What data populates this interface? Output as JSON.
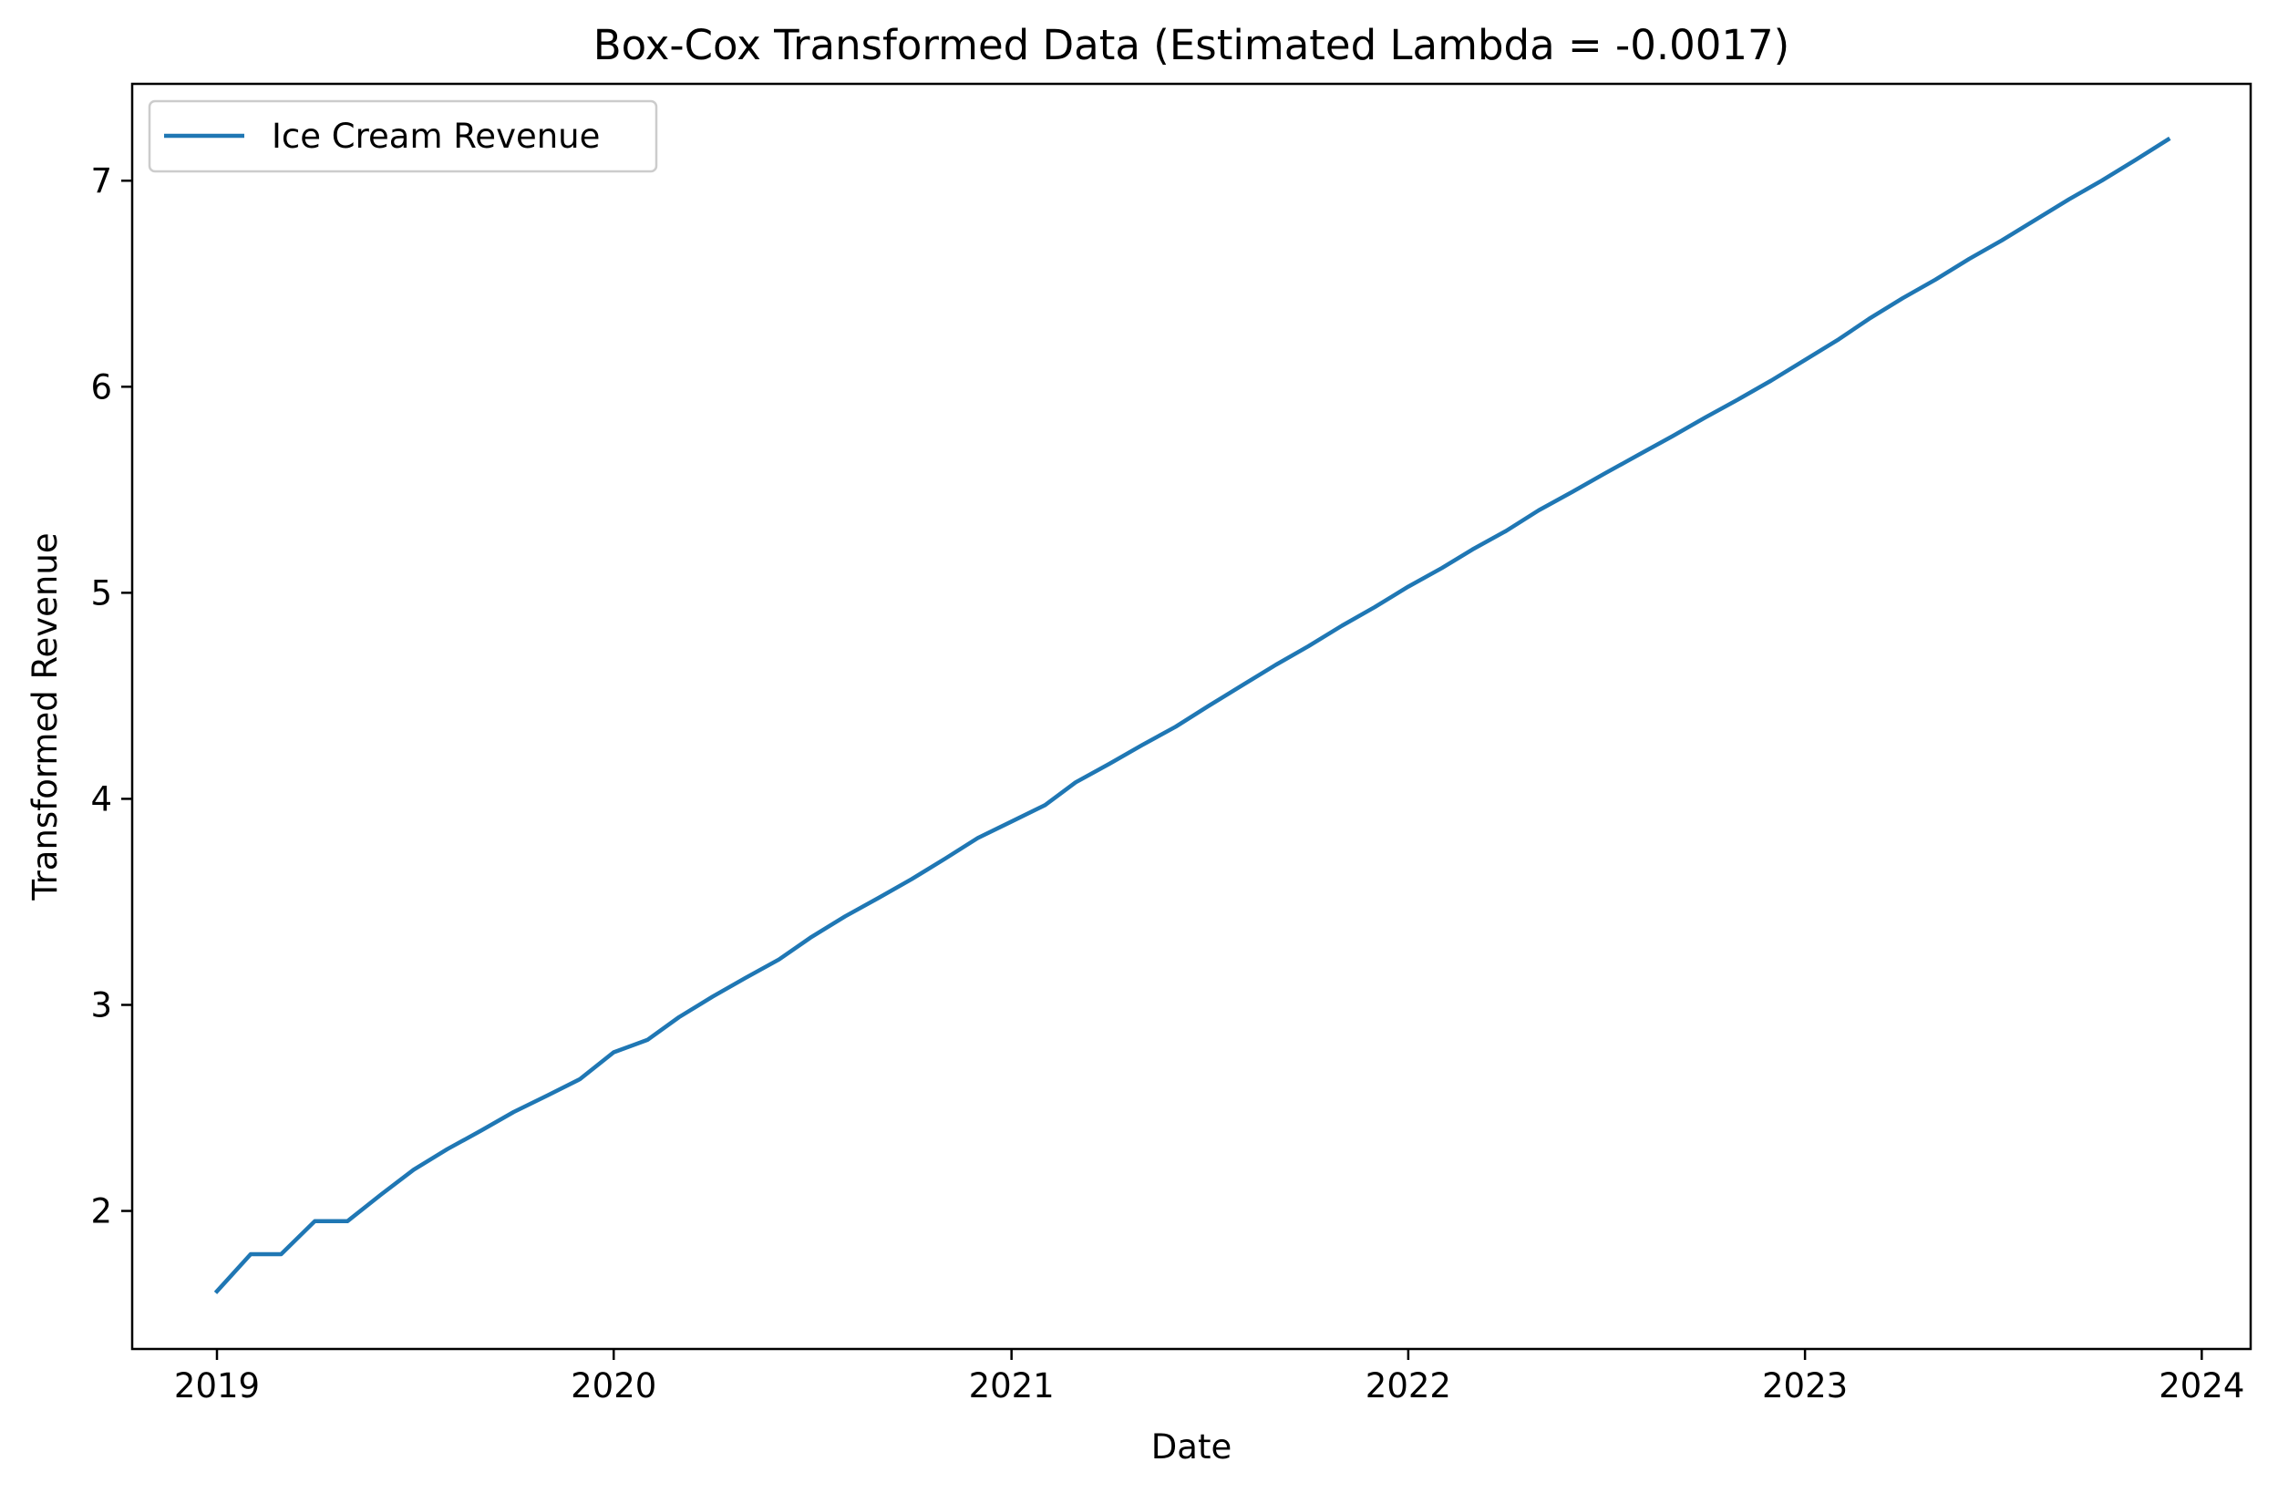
{
  "chart_data": {
    "type": "line",
    "title": "Box-Cox Transformed Data (Estimated Lambda = -0.0017)",
    "xlabel": "Date",
    "ylabel": "Transformed Revenue",
    "x_ticks": [
      "2019",
      "2020",
      "2021",
      "2022",
      "2023",
      "2024"
    ],
    "y_ticks": [
      "2",
      "3",
      "4",
      "5",
      "6",
      "7"
    ],
    "xlim": [
      "2018-10-15",
      "2024-02-15"
    ],
    "ylim": [
      1.33,
      7.47
    ],
    "grid": false,
    "legend": {
      "position": "top-left",
      "entries": [
        "Ice Cream Revenue"
      ]
    },
    "series": [
      {
        "name": "Ice Cream Revenue",
        "color": "#1f77b4",
        "x": [
          "2019-01-01",
          "2019-02-01",
          "2019-03-01",
          "2019-04-01",
          "2019-05-01",
          "2019-06-01",
          "2019-07-01",
          "2019-08-01",
          "2019-09-01",
          "2019-10-01",
          "2019-11-01",
          "2019-12-01",
          "2020-01-01",
          "2020-02-01",
          "2020-03-01",
          "2020-04-01",
          "2020-05-01",
          "2020-06-01",
          "2020-07-01",
          "2020-08-01",
          "2020-09-01",
          "2020-10-01",
          "2020-11-01",
          "2020-12-01",
          "2021-01-01",
          "2021-02-01",
          "2021-03-01",
          "2021-04-01",
          "2021-05-01",
          "2021-06-01",
          "2021-07-01",
          "2021-08-01",
          "2021-09-01",
          "2021-10-01",
          "2021-11-01",
          "2021-12-01",
          "2022-01-01",
          "2022-02-01",
          "2022-03-01",
          "2022-04-01",
          "2022-05-01",
          "2022-06-01",
          "2022-07-01",
          "2022-08-01",
          "2022-09-01",
          "2022-10-01",
          "2022-11-01",
          "2022-12-01",
          "2023-01-01",
          "2023-02-01",
          "2023-03-01",
          "2023-04-01",
          "2023-05-01",
          "2023-06-01",
          "2023-07-01",
          "2023-08-01",
          "2023-09-01",
          "2023-10-01",
          "2023-11-01",
          "2023-12-01"
        ],
        "values": [
          1.61,
          1.79,
          1.79,
          1.95,
          1.95,
          2.08,
          2.2,
          2.3,
          2.39,
          2.48,
          2.56,
          2.64,
          2.77,
          2.83,
          2.94,
          3.04,
          3.13,
          3.22,
          3.33,
          3.43,
          3.52,
          3.61,
          3.71,
          3.81,
          3.89,
          3.97,
          4.08,
          4.17,
          4.26,
          4.35,
          4.45,
          4.55,
          4.65,
          4.74,
          4.84,
          4.93,
          5.03,
          5.12,
          5.21,
          5.3,
          5.4,
          5.49,
          5.58,
          5.67,
          5.76,
          5.85,
          5.94,
          6.03,
          6.13,
          6.23,
          6.33,
          6.43,
          6.52,
          6.62,
          6.71,
          6.81,
          6.91,
          7.0,
          7.1,
          7.2
        ]
      }
    ]
  }
}
